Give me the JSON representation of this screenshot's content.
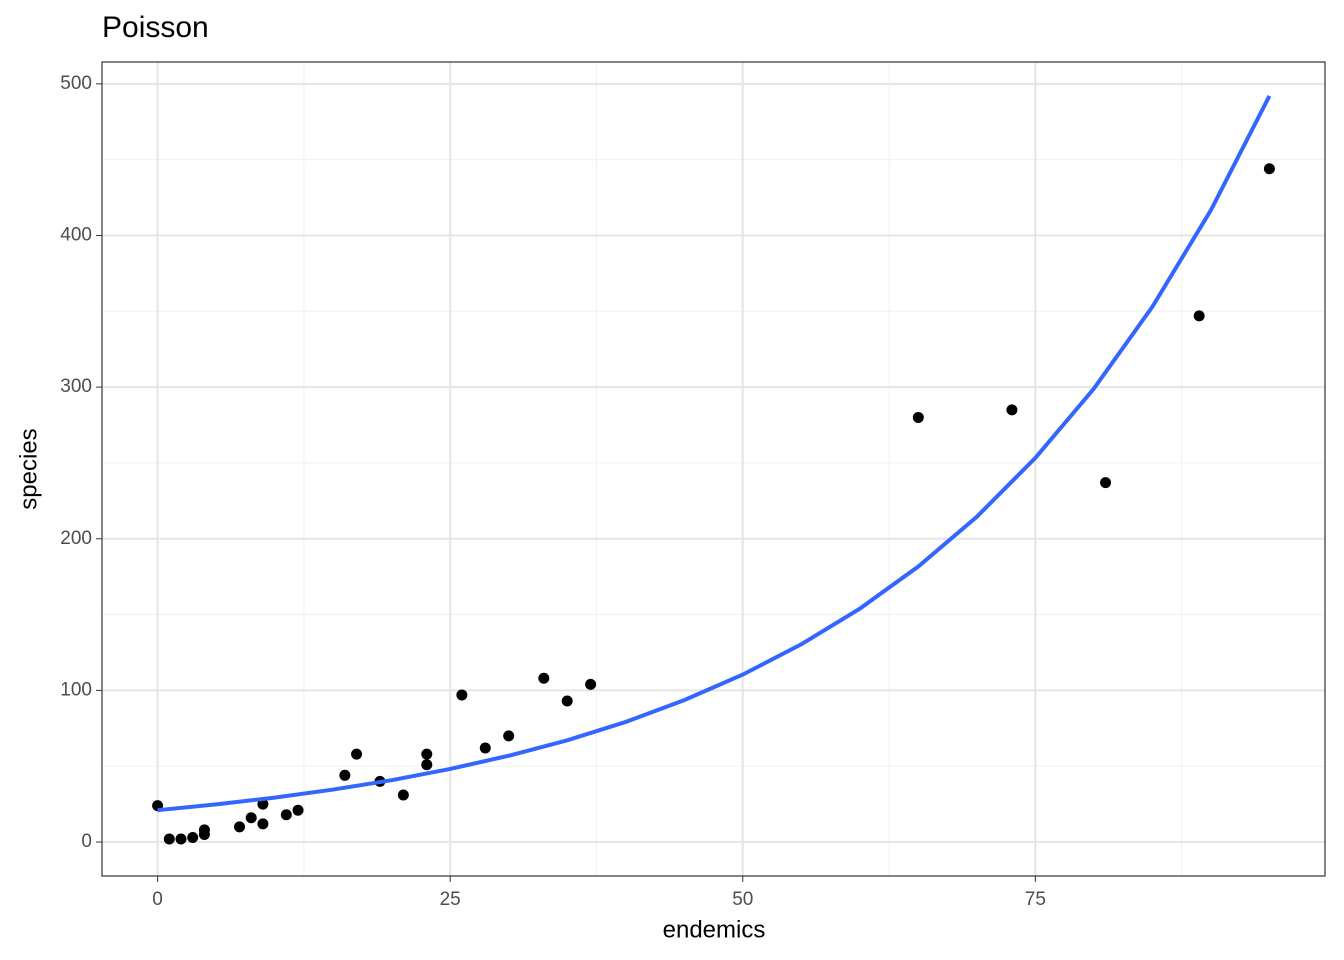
{
  "chart_data": {
    "type": "scatter",
    "title": "Poisson",
    "x_label": "endemics",
    "y_label": "species",
    "xlim": [
      -4.75,
      99.75
    ],
    "ylim": [
      -22.4,
      514.4
    ],
    "xticks": [
      0,
      25,
      50,
      75
    ],
    "yticks": [
      0,
      100,
      200,
      300,
      400,
      500
    ],
    "x_minor_ticks": [
      12.5,
      37.5,
      62.5,
      87.5
    ],
    "y_minor_ticks": [
      50,
      150,
      250,
      350,
      450
    ],
    "grid": true,
    "points": {
      "color": "#000000",
      "x": [
        0,
        1,
        2,
        3,
        4,
        4,
        7,
        8,
        9,
        9,
        11,
        12,
        16,
        17,
        19,
        21,
        23,
        23,
        26,
        28,
        30,
        33,
        35,
        37,
        65,
        73,
        81,
        89,
        95
      ],
      "y": [
        24,
        2,
        2,
        3,
        5,
        8,
        10,
        16,
        12,
        25,
        18,
        21,
        44,
        58,
        40,
        31,
        51,
        58,
        97,
        62,
        70,
        108,
        93,
        104,
        280,
        285,
        237,
        347,
        444
      ]
    },
    "fit": {
      "color": "#3366ff",
      "x": [
        0,
        5,
        10,
        15,
        20,
        25,
        30,
        35,
        40,
        45,
        50,
        55,
        60,
        65,
        70,
        75,
        80,
        85,
        90,
        95
      ],
      "y": [
        21,
        24.8,
        29.3,
        34.6,
        40.8,
        48.2,
        56.9,
        67.1,
        79.2,
        93.6,
        110.4,
        130.4,
        153.9,
        181.7,
        214.5,
        253.3,
        299.0,
        353.0,
        416.7,
        492.0
      ]
    }
  }
}
